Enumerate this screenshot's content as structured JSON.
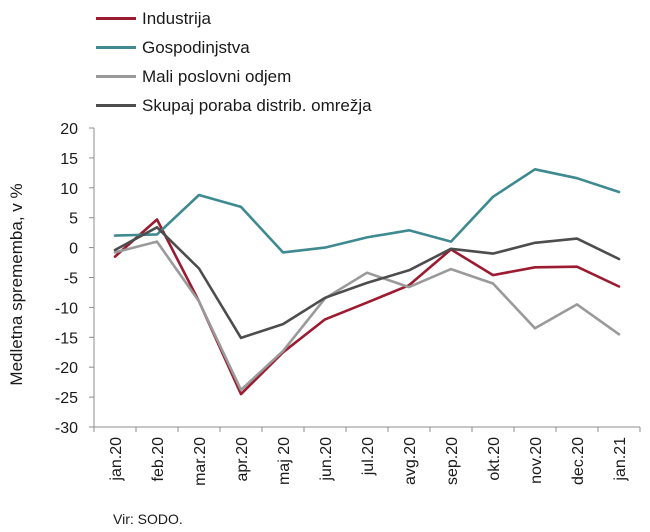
{
  "chart_data": {
    "type": "line",
    "categories": [
      "jan.20",
      "feb.20",
      "mar.20",
      "apr.20",
      "maj 20",
      "jun.20",
      "jul.20",
      "avg.20",
      "sep.20",
      "okt.20",
      "nov.20",
      "dec.20",
      "jan.21"
    ],
    "series": [
      {
        "name": "Industrija",
        "color": "#9b1b30",
        "values": [
          -1.5,
          4.7,
          -9.0,
          -24.5,
          -17.5,
          -12.0,
          -9.2,
          -6.3,
          -0.3,
          -4.6,
          -3.3,
          -3.2,
          -6.5
        ]
      },
      {
        "name": "Gospodinjstva",
        "color": "#3f8a90",
        "values": [
          2.0,
          2.2,
          8.8,
          6.8,
          -0.8,
          0.0,
          1.7,
          2.9,
          1.0,
          8.5,
          13.1,
          11.6,
          9.3
        ]
      },
      {
        "name": "Mali poslovni odjem",
        "color": "#9a9a9a",
        "values": [
          -0.8,
          1.0,
          -9.0,
          -23.8,
          -17.3,
          -8.5,
          -4.2,
          -6.6,
          -3.6,
          -6.0,
          -13.5,
          -9.5,
          -14.5
        ]
      },
      {
        "name": "Skupaj poraba distrib. omrežja",
        "color": "#4d4d4d",
        "values": [
          -0.4,
          3.4,
          -3.5,
          -15.1,
          -12.8,
          -8.4,
          -5.9,
          -3.8,
          -0.2,
          -1.0,
          0.8,
          1.5,
          -1.9
        ]
      }
    ],
    "ylabel": "Medletna sprememba, v %",
    "ylim": [
      -30,
      20
    ],
    "yticks": [
      20,
      15,
      10,
      5,
      0,
      -5,
      -10,
      -15,
      -20,
      -25,
      -30
    ],
    "grid": false,
    "legend_position": "top-left"
  },
  "source": "Vir: SODO."
}
